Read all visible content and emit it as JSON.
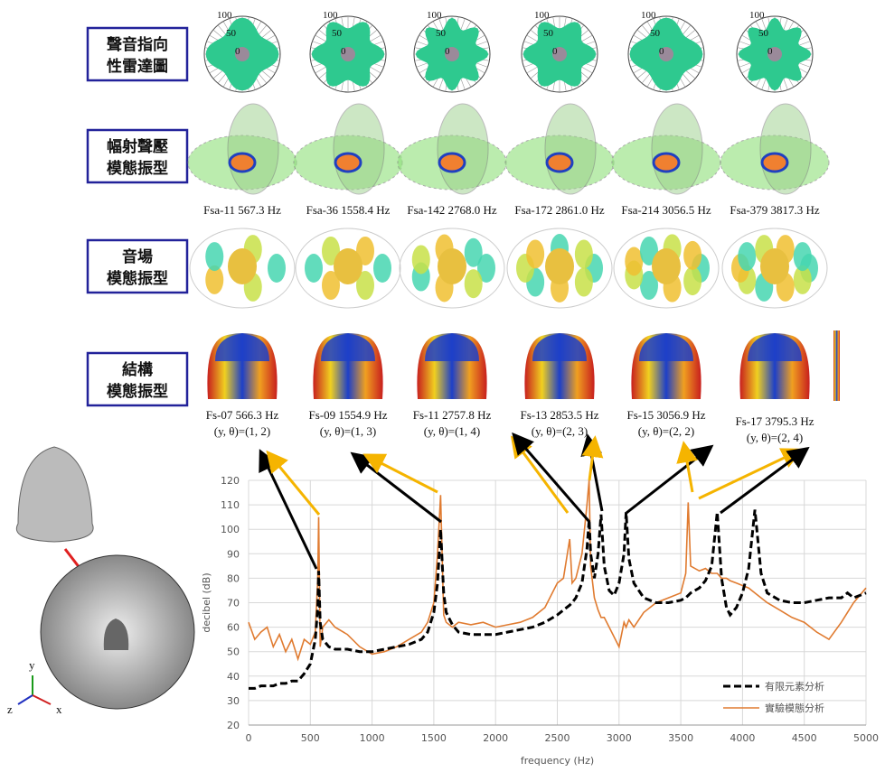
{
  "row_labels": [
    [
      "聲音指向",
      "性雷達圖"
    ],
    [
      "幅射聲壓",
      "模態振型"
    ],
    [
      "音場",
      "模態振型"
    ],
    [
      "結構",
      "模態振型"
    ]
  ],
  "radar_ticks": [
    100,
    50,
    0
  ],
  "acoustic_modes": [
    "Fsa-11 567.3 Hz",
    "Fsa-36 1558.4 Hz",
    "Fsa-142 2768.0 Hz",
    "Fsa-172 2861.0 Hz",
    "Fsa-214 3056.5 Hz",
    "Fsa-379 3817.3 Hz"
  ],
  "structural_modes": [
    {
      "label": "Fs-07 566.3 Hz",
      "shape": "(y, θ)=(1, 2)"
    },
    {
      "label": "Fs-09 1554.9 Hz",
      "shape": "(y, θ)=(1, 3)"
    },
    {
      "label": "Fs-11 2757.8 Hz",
      "shape": "(y, θ)=(1, 4)"
    },
    {
      "label": "Fs-13 2853.5 Hz",
      "shape": "(y, θ)=(2, 3)"
    },
    {
      "label": "Fs-15 3056.9 Hz",
      "shape": "(y, θ)=(2, 2)"
    },
    {
      "label": "Fs-17 3795.3 Hz",
      "shape": "(y, θ)=(2, 4)"
    }
  ],
  "axis_triad": {
    "y": "y",
    "z": "z",
    "x": "x"
  },
  "chart_data": {
    "type": "line",
    "xlabel": "frequency (Hz)",
    "ylabel": "decibel (dB)",
    "xlim": [
      0,
      5000
    ],
    "ylim": [
      20,
      120
    ],
    "xticks": [
      0,
      500,
      1000,
      1500,
      2000,
      2500,
      3000,
      3500,
      4000,
      4500,
      5000
    ],
    "yticks": [
      20,
      30,
      40,
      50,
      60,
      70,
      80,
      90,
      100,
      110,
      120
    ],
    "grid": true,
    "legend": "lower right",
    "x": [
      0,
      50,
      100,
      150,
      200,
      250,
      300,
      350,
      400,
      450,
      500,
      540,
      560,
      567,
      580,
      600,
      650,
      700,
      800,
      900,
      1000,
      1100,
      1200,
      1300,
      1400,
      1450,
      1500,
      1530,
      1555,
      1580,
      1600,
      1650,
      1700,
      1800,
      1900,
      2000,
      2100,
      2200,
      2300,
      2400,
      2500,
      2550,
      2600,
      2620,
      2650,
      2700,
      2740,
      2758,
      2770,
      2800,
      2830,
      2854,
      2880,
      2920,
      2960,
      3000,
      3040,
      3057,
      3080,
      3120,
      3200,
      3300,
      3400,
      3500,
      3540,
      3560,
      3580,
      3650,
      3700,
      3750,
      3795,
      3830,
      3870,
      3900,
      3950,
      4000,
      4050,
      4100,
      4150,
      4200,
      4300,
      4400,
      4500,
      4600,
      4700,
      4800,
      4850,
      4900,
      5000
    ],
    "series": [
      {
        "name": "有限元素分析",
        "color": "#000000",
        "dashed": true,
        "values": [
          35,
          35,
          36,
          36,
          36,
          37,
          37,
          38,
          38,
          41,
          45,
          55,
          68,
          83,
          62,
          55,
          52,
          51,
          51,
          50,
          50,
          51,
          52,
          53,
          55,
          58,
          66,
          78,
          100,
          74,
          66,
          61,
          58,
          57,
          57,
          57,
          58,
          59,
          60,
          62,
          65,
          67,
          69,
          70,
          72,
          78,
          92,
          104,
          90,
          80,
          90,
          106,
          85,
          75,
          73,
          78,
          90,
          107,
          88,
          78,
          72,
          70,
          70,
          71,
          72,
          73,
          74,
          76,
          79,
          85,
          107,
          80,
          68,
          65,
          68,
          74,
          84,
          108,
          82,
          74,
          71,
          70,
          70,
          71,
          72,
          72,
          74,
          72,
          74
        ]
      },
      {
        "name": "實驗模態分析",
        "color": "#e07b30",
        "dashed": false,
        "values": [
          62,
          55,
          58,
          60,
          52,
          57,
          50,
          55,
          47,
          55,
          53,
          58,
          80,
          105,
          52,
          60,
          63,
          60,
          57,
          52,
          49,
          50,
          52,
          55,
          58,
          62,
          70,
          90,
          114,
          65,
          62,
          60,
          62,
          61,
          62,
          60,
          61,
          62,
          64,
          68,
          78,
          80,
          96,
          78,
          80,
          90,
          110,
          120,
          85,
          72,
          67,
          64,
          64,
          60,
          56,
          52,
          62,
          60,
          63,
          60,
          66,
          70,
          72,
          74,
          82,
          111,
          85,
          83,
          84,
          82,
          82,
          80,
          80,
          79,
          78,
          77,
          76,
          74,
          72,
          70,
          67,
          64,
          62,
          58,
          55,
          62,
          66,
          70,
          76
        ]
      }
    ]
  }
}
